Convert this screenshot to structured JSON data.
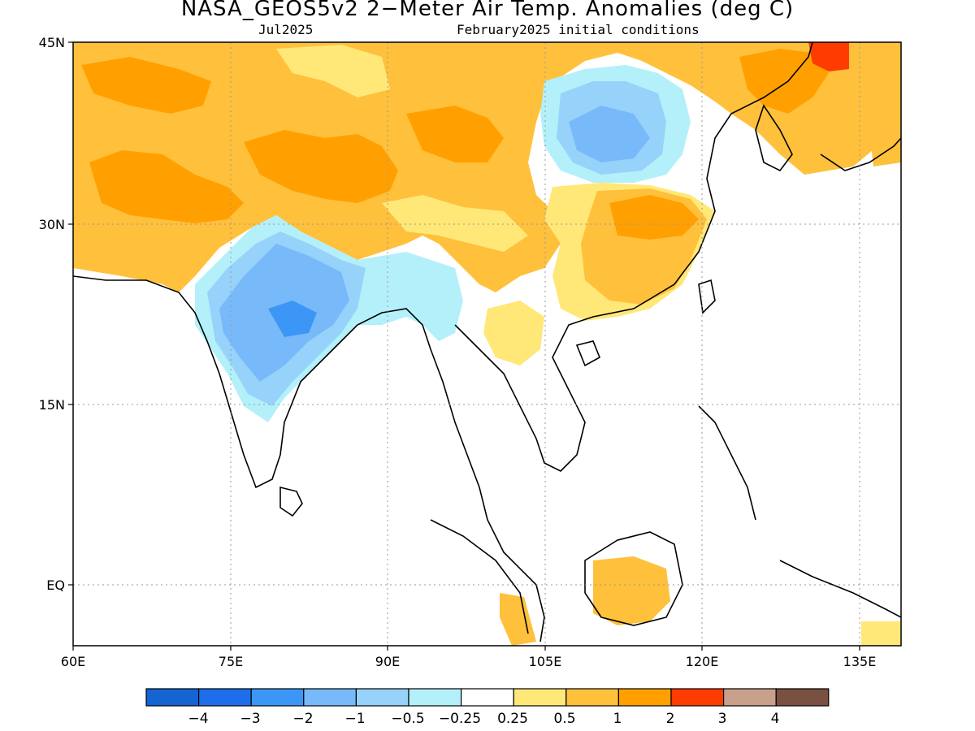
{
  "title": "NASA_GEOS5v2 2−Meter Air Temp. Anomalies (deg C)",
  "subtitle_left": "Jul2025",
  "subtitle_right": "February2025 initial conditions",
  "axes": {
    "lat_labels": [
      "45N",
      "30N",
      "15N",
      "EQ"
    ],
    "lon_labels": [
      "60E",
      "75E",
      "90E",
      "105E",
      "120E",
      "135E"
    ]
  },
  "colorbar": {
    "colors": [
      "#1464d2",
      "#1e6eeb",
      "#3c96f5",
      "#78b9fa",
      "#96d2fa",
      "#b4f0fa",
      "#ffffff",
      "#ffe878",
      "#ffc03c",
      "#ffa000",
      "#ff3c00",
      "#c8a08c",
      "#7a5040"
    ],
    "labels": [
      "−4",
      "−3",
      "−2",
      "−1",
      "−0.5",
      "−0.25",
      "0.25",
      "0.5",
      "1",
      "2",
      "3",
      "4"
    ]
  }
}
